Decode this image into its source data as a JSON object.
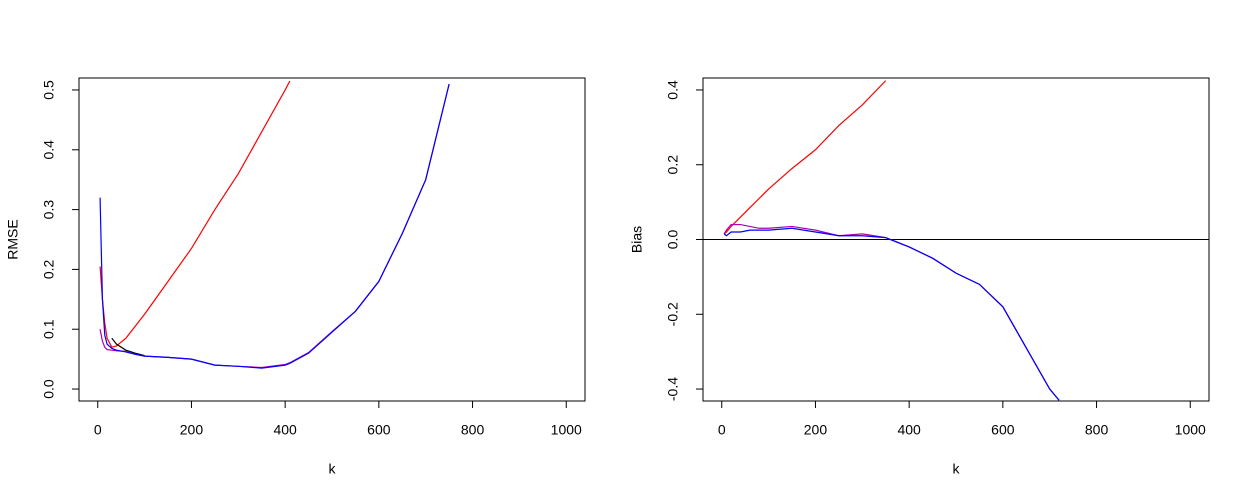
{
  "chart_data": [
    {
      "type": "line",
      "x_label": "k",
      "y_label": "RMSE",
      "xlim": [
        -40,
        1040
      ],
      "ylim": [
        -0.02,
        0.52
      ],
      "xticks": [
        0,
        200,
        400,
        600,
        800,
        1000
      ],
      "yticks": [
        {
          "value": 0,
          "label": "0.0"
        },
        0.1,
        0.2,
        0.3,
        0.4,
        0.5
      ],
      "x": [
        5,
        10,
        15,
        20,
        30,
        40,
        60,
        80,
        100,
        150,
        200,
        250,
        300,
        350,
        400,
        410,
        450,
        500,
        550,
        600,
        650,
        700,
        750
      ],
      "series": [
        {
          "color": "#ff0000",
          "values": [
            0.205,
            0.15,
            0.11,
            0.085,
            0.07,
            0.072,
            0.085,
            0.105,
            0.125,
            0.18,
            0.235,
            0.3,
            0.36,
            0.43,
            0.5,
            0.515,
            null,
            null,
            null,
            null,
            null,
            null,
            null
          ]
        },
        {
          "color": "#000000",
          "values": [
            null,
            null,
            null,
            null,
            0.085,
            0.075,
            0.065,
            0.06,
            0.056,
            null,
            null,
            null,
            null,
            null,
            null,
            null,
            null,
            null,
            null,
            null,
            null,
            null,
            null
          ]
        },
        {
          "color": "#b000b0",
          "values": [
            0.1,
            0.08,
            0.07,
            0.066,
            0.065,
            0.064,
            0.063,
            0.058,
            0.055,
            0.053,
            0.05,
            0.04,
            0.038,
            0.036,
            0.041,
            0.044,
            0.061,
            0.096,
            0.13,
            0.18,
            0.26,
            0.35,
            0.51
          ]
        },
        {
          "color": "#0000ff",
          "values": [
            0.32,
            0.15,
            0.09,
            0.075,
            0.068,
            0.065,
            0.062,
            0.058,
            0.055,
            0.053,
            0.05,
            0.04,
            0.038,
            0.035,
            0.04,
            0.043,
            0.06,
            0.095,
            0.13,
            0.18,
            0.26,
            0.35,
            0.51
          ]
        }
      ]
    },
    {
      "type": "line",
      "x_label": "k",
      "y_label": "Bias",
      "xlim": [
        -40,
        1040
      ],
      "ylim": [
        -0.432,
        0.432
      ],
      "xticks": [
        0,
        200,
        400,
        600,
        800,
        1000
      ],
      "yticks": [
        -0.4,
        -0.2,
        {
          "value": 0,
          "label": "0.0"
        },
        0.2,
        0.4
      ],
      "hline": 0,
      "x": [
        5,
        10,
        20,
        40,
        60,
        80,
        100,
        150,
        200,
        250,
        300,
        350,
        400,
        450,
        500,
        550,
        600,
        650,
        700,
        720
      ],
      "series": [
        {
          "color": "#ff0000",
          "values": [
            0.015,
            0.02,
            0.035,
            0.06,
            0.085,
            0.11,
            0.135,
            0.19,
            0.24,
            0.305,
            0.36,
            0.425,
            null,
            null,
            null,
            null,
            null,
            null,
            null,
            null
          ]
        },
        {
          "color": "#b000b0",
          "values": [
            0.015,
            0.025,
            0.04,
            0.04,
            0.035,
            0.03,
            0.03,
            0.035,
            0.025,
            0.01,
            0.015,
            0.005,
            -0.02,
            -0.05,
            -0.09,
            -0.12,
            -0.18,
            -0.29,
            -0.4,
            -0.43
          ]
        },
        {
          "color": "#0000ff",
          "values": [
            0.015,
            0.01,
            0.02,
            0.02,
            0.025,
            0.025,
            0.025,
            0.03,
            0.02,
            0.01,
            0.01,
            0.005,
            -0.02,
            -0.05,
            -0.09,
            -0.12,
            -0.18,
            -0.29,
            -0.4,
            -0.43
          ]
        }
      ]
    }
  ]
}
